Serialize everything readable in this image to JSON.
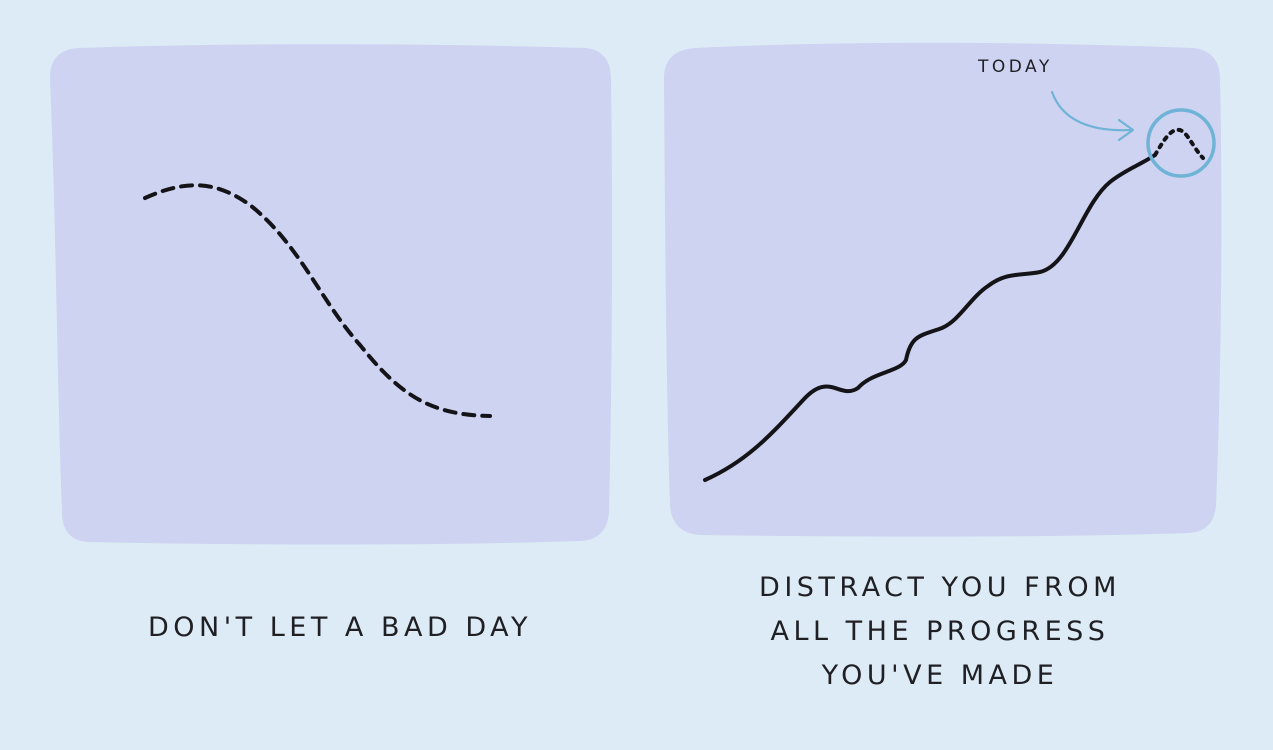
{
  "theme": {
    "background": "#dcebf6",
    "panel_fill": "#cdd3f0",
    "line_color": "#141418",
    "highlight_color": "#6fb3d6",
    "text_color": "#1f1f24"
  },
  "left_panel": {
    "caption": "DON'T LET A BAD DAY"
  },
  "right_panel": {
    "annotation": "TODAY",
    "caption_lines": [
      "DISTRACT YOU FROM",
      "ALL THE PROGRESS",
      "YOU'VE MADE"
    ]
  }
}
